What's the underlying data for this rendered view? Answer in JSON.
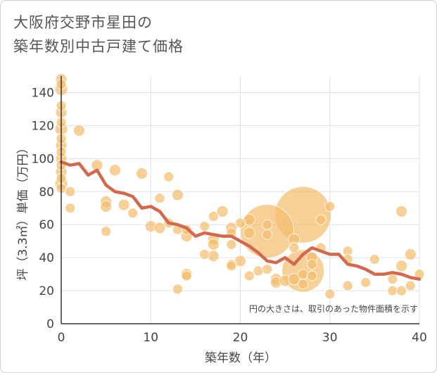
{
  "title_line1": "大阪府交野市星田の",
  "title_line2": "築年数別中古戸建て価格",
  "chart_data": {
    "type": "scatter",
    "title": "大阪府交野市星田の築年数別中古戸建て価格",
    "xlabel": "築年数（年）",
    "ylabel": "坪（3.3㎡）単価（万円）",
    "xlim": [
      0,
      40
    ],
    "ylim": [
      0,
      150
    ],
    "xticks": [
      "0",
      "10",
      "20",
      "30",
      "40"
    ],
    "yticks": [
      "0",
      "20",
      "40",
      "60",
      "80",
      "100",
      "120",
      "140"
    ],
    "note": "円の大きさは、取引のあった物件面積を示す",
    "colors": {
      "bubble": "#f2be6e",
      "line": "#d2694f",
      "grid": "#dbe3ea",
      "axis": "#333333"
    },
    "bubbles": [
      {
        "x": 0,
        "y": 148,
        "s": 8
      },
      {
        "x": 0,
        "y": 145,
        "s": 7
      },
      {
        "x": 0,
        "y": 142,
        "s": 9
      },
      {
        "x": 0,
        "y": 132,
        "s": 7
      },
      {
        "x": 0,
        "y": 128,
        "s": 8
      },
      {
        "x": 0,
        "y": 122,
        "s": 7
      },
      {
        "x": 0,
        "y": 118,
        "s": 9
      },
      {
        "x": 0,
        "y": 112,
        "s": 7
      },
      {
        "x": 0,
        "y": 108,
        "s": 8
      },
      {
        "x": 0,
        "y": 104,
        "s": 7
      },
      {
        "x": 0,
        "y": 100,
        "s": 8
      },
      {
        "x": 0,
        "y": 96,
        "s": 7
      },
      {
        "x": 0,
        "y": 92,
        "s": 8
      },
      {
        "x": 0,
        "y": 88,
        "s": 7
      },
      {
        "x": 0,
        "y": 85,
        "s": 9
      },
      {
        "x": 0,
        "y": 82,
        "s": 7
      },
      {
        "x": 1,
        "y": 80,
        "s": 7
      },
      {
        "x": 1,
        "y": 70,
        "s": 7
      },
      {
        "x": 2,
        "y": 117,
        "s": 8
      },
      {
        "x": 4,
        "y": 96,
        "s": 8
      },
      {
        "x": 5,
        "y": 74,
        "s": 8
      },
      {
        "x": 5,
        "y": 71,
        "s": 8
      },
      {
        "x": 5,
        "y": 56,
        "s": 7
      },
      {
        "x": 6,
        "y": 93,
        "s": 8
      },
      {
        "x": 7,
        "y": 72,
        "s": 8
      },
      {
        "x": 8,
        "y": 67,
        "s": 7
      },
      {
        "x": 9,
        "y": 91,
        "s": 8
      },
      {
        "x": 10,
        "y": 59,
        "s": 8
      },
      {
        "x": 11,
        "y": 76,
        "s": 7
      },
      {
        "x": 11,
        "y": 58,
        "s": 8
      },
      {
        "x": 12,
        "y": 89,
        "s": 7
      },
      {
        "x": 12,
        "y": 61,
        "s": 7
      },
      {
        "x": 13,
        "y": 78,
        "s": 8
      },
      {
        "x": 13,
        "y": 57,
        "s": 7
      },
      {
        "x": 13,
        "y": 21,
        "s": 7
      },
      {
        "x": 14,
        "y": 57,
        "s": 7
      },
      {
        "x": 14,
        "y": 53,
        "s": 8
      },
      {
        "x": 14,
        "y": 30,
        "s": 8
      },
      {
        "x": 14,
        "y": 29,
        "s": 7
      },
      {
        "x": 16,
        "y": 59,
        "s": 7
      },
      {
        "x": 16,
        "y": 42,
        "s": 7
      },
      {
        "x": 17,
        "y": 65,
        "s": 7
      },
      {
        "x": 17,
        "y": 51,
        "s": 8
      },
      {
        "x": 17,
        "y": 48,
        "s": 8
      },
      {
        "x": 17,
        "y": 41,
        "s": 8
      },
      {
        "x": 18,
        "y": 68,
        "s": 8
      },
      {
        "x": 19,
        "y": 58,
        "s": 8
      },
      {
        "x": 19,
        "y": 55,
        "s": 7
      },
      {
        "x": 19,
        "y": 48,
        "s": 7
      },
      {
        "x": 19,
        "y": 36,
        "s": 7
      },
      {
        "x": 19,
        "y": 35,
        "s": 7
      },
      {
        "x": 20,
        "y": 61,
        "s": 7
      },
      {
        "x": 20,
        "y": 38,
        "s": 8
      },
      {
        "x": 21,
        "y": 63,
        "s": 8
      },
      {
        "x": 21,
        "y": 55,
        "s": 8
      },
      {
        "x": 21,
        "y": 29,
        "s": 7
      },
      {
        "x": 22,
        "y": 32,
        "s": 7
      },
      {
        "x": 23,
        "y": 56,
        "s": 38
      },
      {
        "x": 23,
        "y": 60,
        "s": 7
      },
      {
        "x": 23,
        "y": 54,
        "s": 7
      },
      {
        "x": 23,
        "y": 33,
        "s": 7
      },
      {
        "x": 24,
        "y": 27,
        "s": 8
      },
      {
        "x": 24,
        "y": 25,
        "s": 8
      },
      {
        "x": 25,
        "y": 26,
        "s": 8
      },
      {
        "x": 26,
        "y": 51,
        "s": 8
      },
      {
        "x": 26,
        "y": 46,
        "s": 7
      },
      {
        "x": 26,
        "y": 27,
        "s": 8
      },
      {
        "x": 27,
        "y": 66,
        "s": 40
      },
      {
        "x": 27,
        "y": 32,
        "s": 30
      },
      {
        "x": 27,
        "y": 30,
        "s": 7
      },
      {
        "x": 27,
        "y": 24,
        "s": 7
      },
      {
        "x": 28,
        "y": 40,
        "s": 8
      },
      {
        "x": 28,
        "y": 36,
        "s": 7
      },
      {
        "x": 28,
        "y": 29,
        "s": 7
      },
      {
        "x": 29,
        "y": 63,
        "s": 7
      },
      {
        "x": 29,
        "y": 46,
        "s": 7
      },
      {
        "x": 30,
        "y": 71,
        "s": 7
      },
      {
        "x": 30,
        "y": 18,
        "s": 7
      },
      {
        "x": 32,
        "y": 44,
        "s": 7
      },
      {
        "x": 32,
        "y": 39,
        "s": 7
      },
      {
        "x": 32,
        "y": 23,
        "s": 7
      },
      {
        "x": 34,
        "y": 25,
        "s": 7
      },
      {
        "x": 35,
        "y": 39,
        "s": 7
      },
      {
        "x": 37,
        "y": 27,
        "s": 7
      },
      {
        "x": 37,
        "y": 20,
        "s": 7
      },
      {
        "x": 38,
        "y": 68,
        "s": 8
      },
      {
        "x": 38,
        "y": 35,
        "s": 8
      },
      {
        "x": 38,
        "y": 20,
        "s": 7
      },
      {
        "x": 39,
        "y": 42,
        "s": 8
      },
      {
        "x": 39,
        "y": 23,
        "s": 7
      },
      {
        "x": 40,
        "y": 30,
        "s": 7
      }
    ],
    "trend": {
      "x": [
        0,
        1,
        2,
        3,
        4,
        5,
        6,
        7,
        8,
        9,
        10,
        11,
        12,
        13,
        14,
        15,
        16,
        17,
        18,
        19,
        20,
        21,
        22,
        23,
        24,
        25,
        26,
        27,
        28,
        29,
        30,
        31,
        32,
        33,
        34,
        35,
        36,
        37,
        38,
        39,
        40
      ],
      "y": [
        98,
        96,
        97,
        90,
        93,
        84,
        80,
        79,
        77,
        70,
        71,
        68,
        61,
        60,
        58,
        53,
        55,
        54,
        53,
        53,
        50,
        47,
        43,
        38,
        37,
        40,
        36,
        42,
        46,
        44,
        42,
        42,
        36,
        35,
        33,
        30,
        30,
        31,
        30,
        28,
        27
      ]
    }
  }
}
